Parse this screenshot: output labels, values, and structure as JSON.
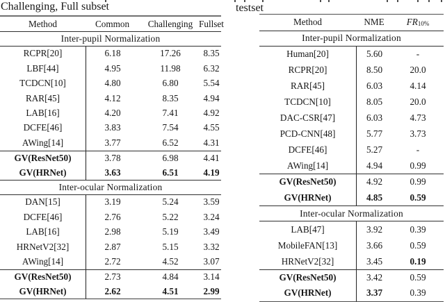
{
  "left_table": {
    "caption": "Challenging, Full subset",
    "columns": [
      "Method",
      "Common",
      "Challenging",
      "Fullset"
    ],
    "rows": [
      {
        "type": "section",
        "label": "Inter-pupil Normalization"
      },
      {
        "type": "data",
        "method": "RCPR[20]",
        "values": [
          "6.18",
          "17.26",
          "8.35"
        ]
      },
      {
        "type": "data",
        "method": "LBF[44]",
        "values": [
          "4.95",
          "11.98",
          "6.32"
        ]
      },
      {
        "type": "data",
        "method": "TCDCN[10]",
        "values": [
          "4.80",
          "6.80",
          "5.54"
        ]
      },
      {
        "type": "data",
        "method": "RAR[45]",
        "values": [
          "4.12",
          "8.35",
          "4.94"
        ]
      },
      {
        "type": "data",
        "method": "LAB[16]",
        "values": [
          "4.20",
          "7.41",
          "4.92"
        ]
      },
      {
        "type": "data",
        "method": "DCFE[46]",
        "values": [
          "3.83",
          "7.54",
          "4.55"
        ]
      },
      {
        "type": "data",
        "method": "AWing[14]",
        "values": [
          "3.77",
          "6.52",
          "4.31"
        ]
      },
      {
        "type": "data",
        "method": "GV(ResNet50)",
        "values": [
          "3.78",
          "6.98",
          "4.41"
        ],
        "bold_method": true,
        "rule_above": true
      },
      {
        "type": "data",
        "method": "GV(HRNet)",
        "values": [
          "3.63",
          "6.51",
          "4.19"
        ],
        "bold_method": true,
        "bold_values": [
          true,
          true,
          true
        ]
      },
      {
        "type": "section",
        "label": "Inter-ocular Normalization"
      },
      {
        "type": "data",
        "method": "DAN[15]",
        "values": [
          "3.19",
          "5.24",
          "3.59"
        ]
      },
      {
        "type": "data",
        "method": "DCFE[46]",
        "values": [
          "2.76",
          "5.22",
          "3.24"
        ]
      },
      {
        "type": "data",
        "method": "LAB[16]",
        "values": [
          "2.98",
          "5.19",
          "3.49"
        ]
      },
      {
        "type": "data",
        "method": "HRNetV2[32]",
        "values": [
          "2.87",
          "5.15",
          "3.32"
        ]
      },
      {
        "type": "data",
        "method": "AWing[14]",
        "values": [
          "2.72",
          "4.52",
          "3.07"
        ]
      },
      {
        "type": "data",
        "method": "GV(ResNet50)",
        "values": [
          "2.73",
          "4.84",
          "3.14"
        ],
        "bold_method": true,
        "rule_above": true
      },
      {
        "type": "data",
        "method": "GV(HRNet)",
        "values": [
          "2.62",
          "4.51",
          "2.99"
        ],
        "bold_method": true,
        "bold_values": [
          true,
          true,
          true
        ]
      }
    ]
  },
  "right_table": {
    "caption": "testset",
    "columns": [
      "Method",
      "NME",
      {
        "italic": "FR",
        "sub": "10%"
      }
    ],
    "rows": [
      {
        "type": "section",
        "label": "Inter-pupil Normalization"
      },
      {
        "type": "data",
        "method": "Human[20]",
        "values": [
          "5.60",
          "-"
        ]
      },
      {
        "type": "data",
        "method": "RCPR[20]",
        "values": [
          "8.50",
          "20.0"
        ]
      },
      {
        "type": "data",
        "method": "RAR[45]",
        "values": [
          "6.03",
          "4.14"
        ]
      },
      {
        "type": "data",
        "method": "TCDCN[10]",
        "values": [
          "8.05",
          "20.0"
        ]
      },
      {
        "type": "data",
        "method": "DAC-CSR[47]",
        "values": [
          "6.03",
          "4.73"
        ]
      },
      {
        "type": "data",
        "method": "PCD-CNN[48]",
        "values": [
          "5.77",
          "3.73"
        ]
      },
      {
        "type": "data",
        "method": "DCFE[46]",
        "values": [
          "5.27",
          "-"
        ]
      },
      {
        "type": "data",
        "method": "AWing[14]",
        "values": [
          "4.94",
          "0.99"
        ]
      },
      {
        "type": "data",
        "method": "GV(ResNet50)",
        "values": [
          "4.92",
          "0.99"
        ],
        "bold_method": true,
        "rule_above": true
      },
      {
        "type": "data",
        "method": "GV(HRNet)",
        "values": [
          "4.85",
          "0.59"
        ],
        "bold_method": true,
        "bold_values": [
          true,
          true
        ]
      },
      {
        "type": "section",
        "label": "Inter-ocular Normalization"
      },
      {
        "type": "data",
        "method": "LAB[47]",
        "values": [
          "3.92",
          "0.39"
        ]
      },
      {
        "type": "data",
        "method": "MobileFAN[13]",
        "values": [
          "3.66",
          "0.59"
        ]
      },
      {
        "type": "data",
        "method": "HRNetV2[32]",
        "values": [
          "3.45",
          "0.19"
        ],
        "bold_values": [
          false,
          true
        ]
      },
      {
        "type": "data",
        "method": "GV(ResNet50)",
        "values": [
          "3.42",
          "0.59"
        ],
        "bold_method": true,
        "rule_above": true
      },
      {
        "type": "data",
        "method": "GV(HRNet)",
        "values": [
          "3.37",
          "0.39"
        ],
        "bold_method": true,
        "bold_values": [
          true,
          false
        ]
      }
    ]
  }
}
